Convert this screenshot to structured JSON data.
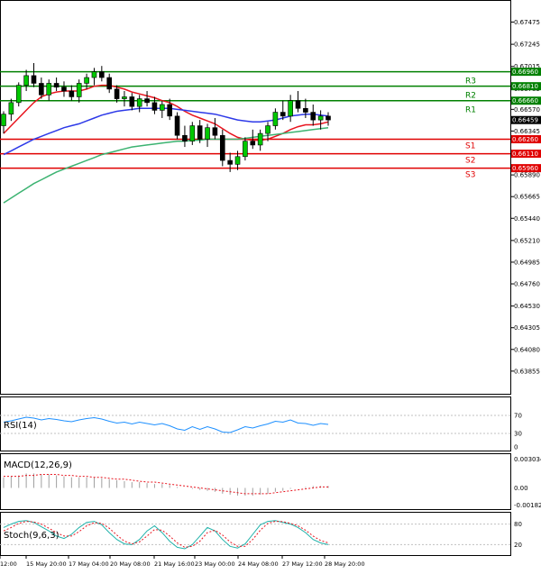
{
  "chart_data": {
    "type": "candlestick",
    "price_axis_ticks": [
      "0.67475",
      "0.67245",
      "0.67015",
      "0.66785",
      "0.66570",
      "0.66345",
      "0.66115",
      "0.65890",
      "0.65665",
      "0.65440",
      "0.65210",
      "0.64985",
      "0.64760",
      "0.64530",
      "0.64305",
      "0.64080",
      "0.63855",
      "0.63625"
    ],
    "price_range": [
      0.6362,
      0.6762
    ],
    "time_labels": [
      "12:00",
      "15 May 20:00",
      "17 May 04:00",
      "20 May 08:00",
      "21 May 16:00",
      "23 May 00:00",
      "24 May 08:00",
      "27 May 12:00",
      "28 May 20:00"
    ],
    "current_price": "0.66459",
    "levels": [
      {
        "name": "R3",
        "value": 0.6681,
        "label": "0.66810",
        "color": "#008000"
      },
      {
        "name": "R2",
        "value": 0.6666,
        "label": "0.66660",
        "color": "#008000"
      },
      {
        "name": "R1",
        "value": 0.6696,
        "label": "0.66960",
        "color": "#008000"
      },
      {
        "name": "S1",
        "value": 0.6626,
        "label": "0.66260",
        "color": "#e00000"
      },
      {
        "name": "S2",
        "value": 0.6611,
        "label": "0.66110",
        "color": "#e00000"
      },
      {
        "name": "S3",
        "value": 0.6596,
        "label": "0.65960",
        "color": "#e00000"
      }
    ],
    "candles": [
      [
        0.664,
        0.6655,
        0.6632,
        0.6652
      ],
      [
        0.6652,
        0.6668,
        0.6645,
        0.6664
      ],
      [
        0.6664,
        0.6685,
        0.666,
        0.6682
      ],
      [
        0.6682,
        0.6698,
        0.6676,
        0.6692
      ],
      [
        0.6692,
        0.6705,
        0.668,
        0.6684
      ],
      [
        0.6684,
        0.669,
        0.6668,
        0.6672
      ],
      [
        0.6672,
        0.6688,
        0.6666,
        0.6684
      ],
      [
        0.6684,
        0.669,
        0.6676,
        0.668
      ],
      [
        0.668,
        0.6686,
        0.667,
        0.6676
      ],
      [
        0.6676,
        0.6682,
        0.6666,
        0.667
      ],
      [
        0.667,
        0.6688,
        0.6664,
        0.6684
      ],
      [
        0.6684,
        0.6694,
        0.6678,
        0.669
      ],
      [
        0.669,
        0.67,
        0.6682,
        0.6696
      ],
      [
        0.6696,
        0.6702,
        0.6686,
        0.669
      ],
      [
        0.669,
        0.6694,
        0.6674,
        0.6678
      ],
      [
        0.6678,
        0.6682,
        0.6664,
        0.6668
      ],
      [
        0.6668,
        0.6676,
        0.666,
        0.667
      ],
      [
        0.667,
        0.6674,
        0.6656,
        0.666
      ],
      [
        0.666,
        0.6672,
        0.6654,
        0.6668
      ],
      [
        0.6668,
        0.6676,
        0.666,
        0.6664
      ],
      [
        0.6664,
        0.667,
        0.6652,
        0.6656
      ],
      [
        0.6656,
        0.6666,
        0.6648,
        0.6662
      ],
      [
        0.6662,
        0.6668,
        0.6646,
        0.665
      ],
      [
        0.665,
        0.6654,
        0.6626,
        0.663
      ],
      [
        0.663,
        0.664,
        0.6618,
        0.6624
      ],
      [
        0.6624,
        0.6644,
        0.662,
        0.664
      ],
      [
        0.664,
        0.6646,
        0.6622,
        0.6626
      ],
      [
        0.6626,
        0.6642,
        0.6618,
        0.6638
      ],
      [
        0.6638,
        0.6648,
        0.6626,
        0.663
      ],
      [
        0.663,
        0.6636,
        0.6598,
        0.6604
      ],
      [
        0.6604,
        0.6612,
        0.6592,
        0.66
      ],
      [
        0.66,
        0.6614,
        0.6594,
        0.6608
      ],
      [
        0.6608,
        0.6628,
        0.6604,
        0.6624
      ],
      [
        0.6624,
        0.6636,
        0.6616,
        0.662
      ],
      [
        0.662,
        0.6636,
        0.6614,
        0.6632
      ],
      [
        0.6632,
        0.6644,
        0.6624,
        0.664
      ],
      [
        0.664,
        0.6658,
        0.6636,
        0.6654
      ],
      [
        0.6654,
        0.6666,
        0.6646,
        0.665
      ],
      [
        0.665,
        0.6672,
        0.6644,
        0.6666
      ],
      [
        0.6666,
        0.6676,
        0.6654,
        0.6658
      ],
      [
        0.6658,
        0.6668,
        0.6648,
        0.6654
      ],
      [
        0.6654,
        0.6662,
        0.664,
        0.6646
      ],
      [
        0.6646,
        0.6656,
        0.6636,
        0.665
      ],
      [
        0.665,
        0.6654,
        0.664,
        0.6646
      ]
    ],
    "indicators": {
      "rsi": {
        "label": "RSI(14)",
        "ticks": [
          "70",
          "30",
          "0"
        ],
        "range": [
          0,
          100
        ],
        "values": [
          55,
          58,
          62,
          66,
          64,
          60,
          63,
          61,
          58,
          56,
          60,
          63,
          65,
          62,
          57,
          53,
          55,
          51,
          55,
          52,
          49,
          52,
          47,
          40,
          37,
          45,
          39,
          45,
          40,
          33,
          32,
          38,
          45,
          42,
          47,
          51,
          57,
          55,
          60,
          53,
          52,
          48,
          52,
          50
        ]
      },
      "macd": {
        "label": "MACD(12,26,9)",
        "ticks": [
          "0.003034",
          "0.00",
          "-0.001826"
        ],
        "range": [
          -0.001826,
          0.003034
        ],
        "hist": [
          0.0011,
          0.0012,
          0.0013,
          0.0015,
          0.0015,
          0.0014,
          0.0014,
          0.0013,
          0.0012,
          0.0011,
          0.0011,
          0.0011,
          0.0011,
          0.001,
          0.0009,
          0.0008,
          0.0007,
          0.0006,
          0.0006,
          0.0005,
          0.0004,
          0.0004,
          0.0003,
          0.0001,
          0.0,
          -0.0001,
          -0.0002,
          -0.0003,
          -0.0004,
          -0.0006,
          -0.0007,
          -0.0008,
          -0.0008,
          -0.0008,
          -0.0007,
          -0.0006,
          -0.0004,
          -0.0003,
          -0.0001,
          0.0,
          0.0001,
          0.0002,
          0.0002,
          0.0002
        ],
        "signal": [
          0.0012,
          0.0012,
          0.0012,
          0.0013,
          0.0013,
          0.0014,
          0.0014,
          0.0014,
          0.0013,
          0.0013,
          0.0012,
          0.0012,
          0.0011,
          0.0011,
          0.001,
          0.0009,
          0.0009,
          0.0008,
          0.0007,
          0.0006,
          0.0006,
          0.0005,
          0.0004,
          0.0003,
          0.0002,
          0.0001,
          0.0,
          -0.0001,
          -0.0002,
          -0.0003,
          -0.0004,
          -0.0005,
          -0.0006,
          -0.0006,
          -0.0006,
          -0.0006,
          -0.0005,
          -0.0004,
          -0.0003,
          -0.0002,
          -0.0001,
          0.0,
          0.0001,
          0.0001
        ]
      },
      "stoch": {
        "label": "Stoch(9,6,3)",
        "ticks": [
          "80",
          "20"
        ],
        "range": [
          0,
          100
        ],
        "main": [
          70,
          80,
          88,
          90,
          85,
          72,
          60,
          45,
          38,
          50,
          70,
          85,
          88,
          78,
          55,
          35,
          22,
          20,
          35,
          60,
          75,
          55,
          30,
          12,
          8,
          20,
          45,
          70,
          60,
          35,
          15,
          10,
          22,
          50,
          78,
          88,
          90,
          85,
          80,
          70,
          55,
          35,
          25,
          20
        ],
        "signal": [
          60,
          70,
          82,
          88,
          86,
          80,
          68,
          55,
          45,
          45,
          58,
          75,
          84,
          82,
          68,
          48,
          30,
          22,
          28,
          45,
          64,
          62,
          45,
          25,
          12,
          15,
          30,
          55,
          62,
          48,
          28,
          15,
          15,
          35,
          62,
          82,
          88,
          87,
          82,
          75,
          62,
          45,
          32,
          25
        ]
      }
    },
    "moving_averages": [
      {
        "name": "red",
        "color": "#e8141e",
        "values": [
          0.6632,
          0.664,
          0.6648,
          0.6656,
          0.6664,
          0.667,
          0.6673,
          0.6675,
          0.6676,
          0.6676,
          0.6676,
          0.6678,
          0.6681,
          0.6682,
          0.6682,
          0.668,
          0.6678,
          0.6675,
          0.6673,
          0.6671,
          0.6669,
          0.6666,
          0.6664,
          0.666,
          0.6655,
          0.6651,
          0.6648,
          0.6645,
          0.6642,
          0.6637,
          0.6632,
          0.6628,
          0.6626,
          0.6625,
          0.6625,
          0.6626,
          0.6629,
          0.6632,
          0.6636,
          0.6639,
          0.6641,
          0.6641,
          0.6642,
          0.6644
        ]
      },
      {
        "name": "blue",
        "color": "#2d39e8",
        "values": [
          0.661,
          0.6614,
          0.6618,
          0.6622,
          0.6626,
          0.6629,
          0.6632,
          0.6635,
          0.6638,
          0.664,
          0.6642,
          0.6645,
          0.6648,
          0.6651,
          0.6653,
          0.6655,
          0.6656,
          0.6657,
          0.6658,
          0.6658,
          0.6658,
          0.6658,
          0.6658,
          0.6657,
          0.6656,
          0.6655,
          0.6654,
          0.6653,
          0.6652,
          0.665,
          0.6648,
          0.6646,
          0.6645,
          0.6644,
          0.6644,
          0.6645,
          0.6646,
          0.6648,
          0.665,
          0.6651,
          0.6652,
          0.6652,
          0.6651,
          0.665
        ]
      },
      {
        "name": "green",
        "color": "#3cb371",
        "values": [
          0.656,
          0.6565,
          0.657,
          0.6575,
          0.658,
          0.6584,
          0.6588,
          0.6592,
          0.6595,
          0.6598,
          0.6601,
          0.6604,
          0.6607,
          0.661,
          0.6612,
          0.6614,
          0.6616,
          0.6618,
          0.6619,
          0.662,
          0.6621,
          0.6622,
          0.6623,
          0.6624,
          0.6624,
          0.6625,
          0.6625,
          0.6626,
          0.6626,
          0.6626,
          0.6626,
          0.6626,
          0.6627,
          0.6628,
          0.6629,
          0.663,
          0.6631,
          0.6632,
          0.6633,
          0.6634,
          0.6635,
          0.6636,
          0.6637,
          0.6638
        ]
      }
    ]
  }
}
